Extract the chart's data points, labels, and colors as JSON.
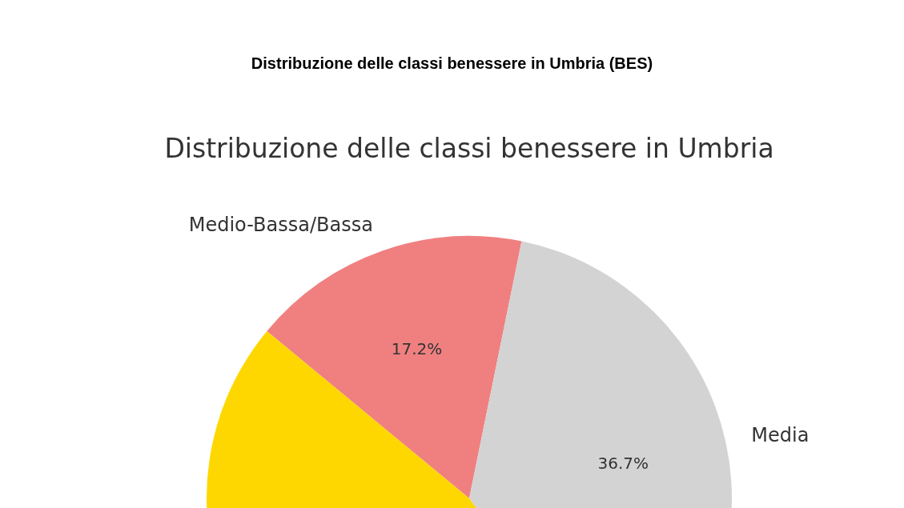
{
  "chart_data": {
    "type": "pie",
    "title": "Distribuzione delle classi benessere in Umbria (BES)",
    "subtitle": "Distribuzione delle classi benessere in Umbria",
    "categories": [
      "Medio-Bassa/Bassa",
      "Media",
      null
    ],
    "values": [
      17.2,
      36.7,
      46.1
    ],
    "colors": [
      "#f08080",
      "#d3d3d3",
      "#ffd700"
    ],
    "value_labels": [
      "17.2%",
      "36.7%",
      null
    ],
    "legend": false
  }
}
